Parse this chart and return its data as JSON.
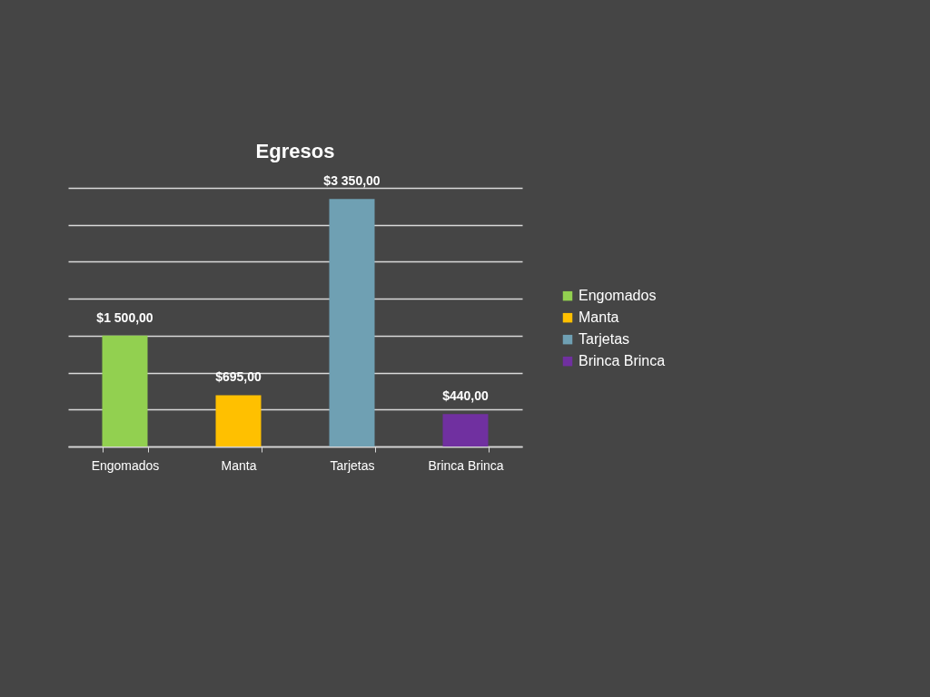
{
  "chart_data": {
    "type": "bar",
    "title": "Egresos",
    "categories": [
      "Engomados",
      "Manta",
      "Tarjetas",
      "Brinca Brinca"
    ],
    "series": [
      {
        "name": "Engomados",
        "color": "#92d050",
        "values": [
          1500,
          null,
          null,
          null
        ],
        "value_labels": [
          "$1 500,00",
          null,
          null,
          null
        ]
      },
      {
        "name": "Manta",
        "color": "#ffc000",
        "values": [
          null,
          695,
          null,
          null
        ],
        "value_labels": [
          null,
          "$695,00",
          null,
          null
        ]
      },
      {
        "name": "Tarjetas",
        "color": "#6fa0b3",
        "values": [
          null,
          null,
          3350,
          null
        ],
        "value_labels": [
          null,
          null,
          "$3 350,00",
          null
        ]
      },
      {
        "name": "Brinca Brinca",
        "color": "#7030a0",
        "values": [
          null,
          null,
          null,
          440
        ],
        "value_labels": [
          null,
          null,
          null,
          "$440,00"
        ]
      }
    ],
    "stacked": true,
    "ylim": [
      0,
      3500
    ],
    "yticks": [
      {
        "value": 0,
        "label": null
      },
      {
        "value": 500,
        "label": null
      },
      {
        "value": 1000,
        "label": null
      },
      {
        "value": 1500,
        "label": null
      },
      {
        "value": 2000,
        "label": null
      },
      {
        "value": 2500,
        "label": null
      },
      {
        "value": 3000,
        "label": null
      },
      {
        "value": 3500,
        "label": null
      }
    ],
    "grid": "y",
    "legend": "right",
    "tick_labels": "x"
  }
}
